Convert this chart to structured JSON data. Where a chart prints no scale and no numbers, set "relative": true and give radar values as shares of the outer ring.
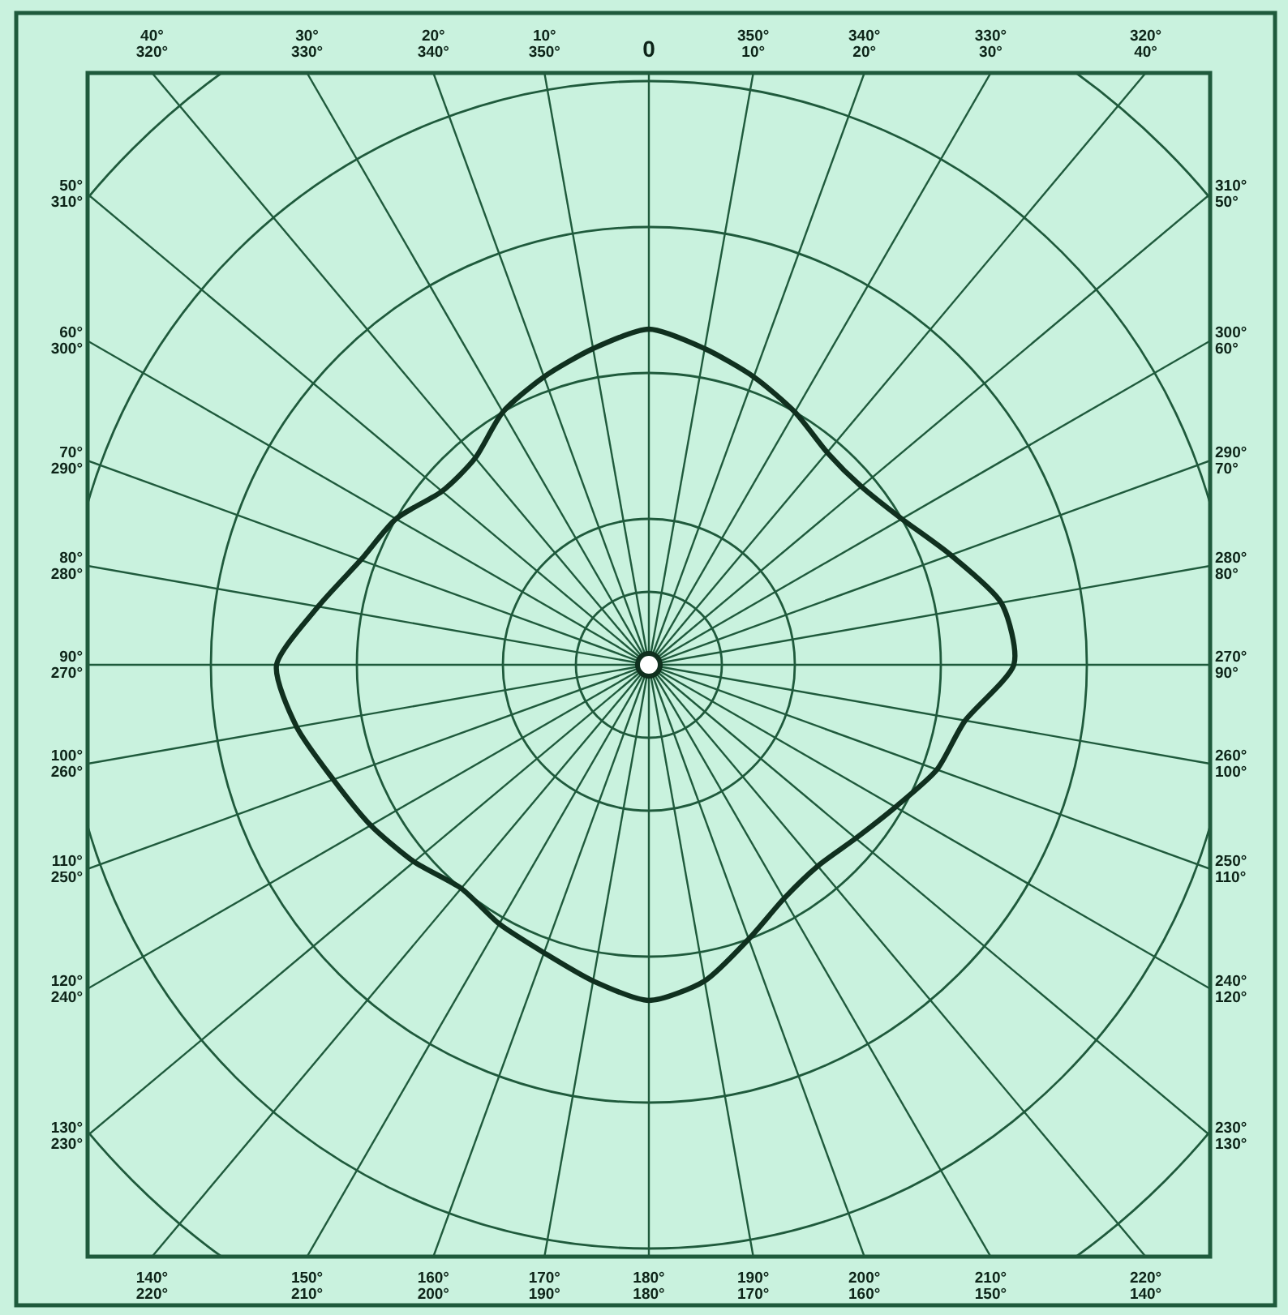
{
  "chart_data": {
    "type": "radar",
    "relative": true,
    "grid": true,
    "categories": [
      "0",
      "350° 10°",
      "340° 20°",
      "330° 30°",
      "320° 40°",
      "310° 50°",
      "300° 60°",
      "290° 70°",
      "280° 80°",
      "270° 90°",
      "260° 100°",
      "250° 110°",
      "240° 120°",
      "230° 130°",
      "220° 140°",
      "210° 150°",
      "200° 160°",
      "190° 170°",
      "180° 180°",
      "170° 190°",
      "160° 200°",
      "150° 210°",
      "140° 220°",
      "130° 230°",
      "120° 240°",
      "110° 250°",
      "100° 260°",
      "90° 270°",
      "80° 280°",
      "70° 290°",
      "60° 300°",
      "50° 310°",
      "40° 320°",
      "30° 330°",
      "20° 340°",
      "10° 350°"
    ],
    "series": [
      {
        "color": "#10301f",
        "values": [
          0.46,
          0.44,
          0.42,
          0.4,
          0.38,
          0.38,
          0.4,
          0.44,
          0.49,
          0.5,
          0.44,
          0.42,
          0.39,
          0.37,
          0.36,
          0.37,
          0.4,
          0.44,
          0.46,
          0.44,
          0.42,
          0.41,
          0.4,
          0.42,
          0.44,
          0.46,
          0.49,
          0.51,
          0.46,
          0.42,
          0.4,
          0.37,
          0.37,
          0.4,
          0.42,
          0.44
        ]
      }
    ]
  }
}
